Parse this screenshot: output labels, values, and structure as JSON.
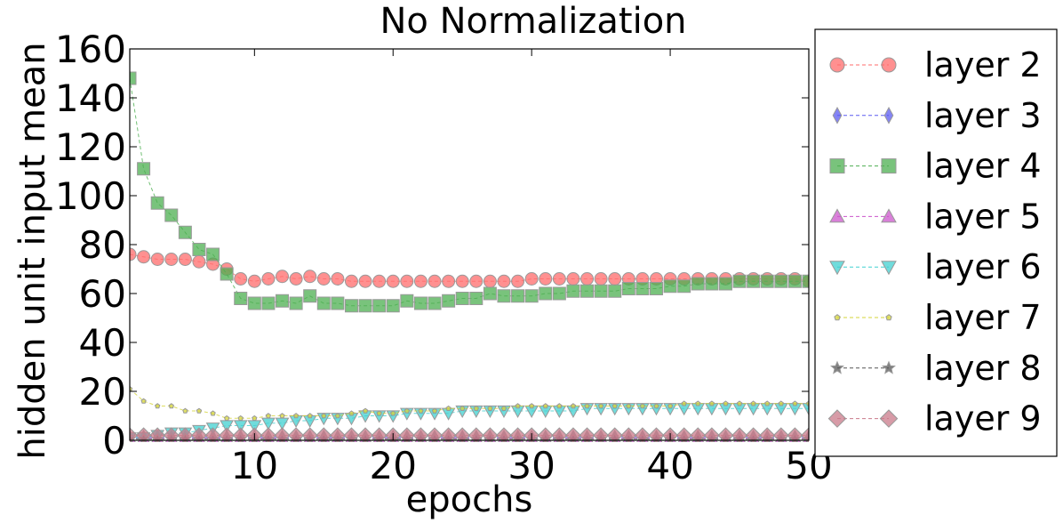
{
  "chart_data": {
    "type": "line",
    "title": "No Normalization",
    "xlabel": "epochs",
    "ylabel": "hidden unit input mean",
    "xlim": [
      1,
      50
    ],
    "ylim": [
      0,
      160
    ],
    "xticks": [
      10,
      20,
      30,
      40,
      50
    ],
    "yticks": [
      0,
      20,
      40,
      60,
      80,
      100,
      120,
      140,
      160
    ],
    "grid": false,
    "legend_position": "right-outside",
    "x": [
      1,
      2,
      3,
      4,
      5,
      6,
      7,
      8,
      9,
      10,
      11,
      12,
      13,
      14,
      15,
      16,
      17,
      18,
      19,
      20,
      21,
      22,
      23,
      24,
      25,
      26,
      27,
      28,
      29,
      30,
      31,
      32,
      33,
      34,
      35,
      36,
      37,
      38,
      39,
      40,
      41,
      42,
      43,
      44,
      45,
      46,
      47,
      48,
      49,
      50
    ],
    "series": [
      {
        "name": "layer 2",
        "color": "#ff6b6b",
        "marker": "circle",
        "values": [
          76,
          75,
          74,
          74,
          74,
          73,
          72,
          70,
          66,
          65,
          66,
          67,
          66,
          67,
          66,
          66,
          65,
          65,
          65,
          65,
          65,
          65,
          65,
          65,
          65,
          65,
          65,
          65,
          65,
          66,
          66,
          66,
          66,
          66,
          66,
          66,
          66,
          66,
          66,
          66,
          66,
          66,
          66,
          66,
          66,
          66,
          66,
          66,
          66,
          65
        ]
      },
      {
        "name": "layer 3",
        "color": "#5b5bf0",
        "marker": "diamond-thin",
        "values": [
          1.2,
          1.2,
          1.2,
          1.2,
          1.2,
          1.2,
          1.2,
          1.2,
          1.2,
          1.2,
          1.2,
          1.2,
          1.2,
          1.2,
          1.2,
          1.2,
          1.2,
          1.2,
          1.2,
          1.2,
          1.2,
          1.2,
          1.2,
          1.2,
          1.2,
          1.2,
          1.2,
          1.2,
          1.2,
          1.2,
          1.2,
          1.2,
          1.2,
          1.2,
          1.2,
          1.2,
          1.2,
          1.2,
          1.2,
          1.2,
          1.2,
          1.2,
          1.2,
          1.2,
          1.2,
          1.2,
          1.2,
          1.2,
          1.2,
          1.2
        ]
      },
      {
        "name": "layer 4",
        "color": "#4caf50",
        "marker": "square",
        "values": [
          148,
          111,
          97,
          92,
          85,
          78,
          76,
          68,
          58,
          56,
          56,
          57,
          56,
          59,
          56,
          56,
          55,
          55,
          55,
          55,
          57,
          56,
          56,
          57,
          58,
          58,
          60,
          59,
          59,
          59,
          60,
          60,
          61,
          61,
          61,
          61,
          62,
          62,
          62,
          63,
          63,
          64,
          64,
          64,
          65,
          65,
          65,
          65,
          65,
          65
        ]
      },
      {
        "name": "layer 5",
        "color": "#cc55cc",
        "marker": "triangle-up",
        "values": [
          0.8,
          0.8,
          0.8,
          0.8,
          0.8,
          0.8,
          0.8,
          0.8,
          0.8,
          0.8,
          0.8,
          0.8,
          0.8,
          0.8,
          0.8,
          0.8,
          0.8,
          0.8,
          0.8,
          0.8,
          0.8,
          0.8,
          0.8,
          0.8,
          0.8,
          0.8,
          0.8,
          0.8,
          0.8,
          0.8,
          0.8,
          0.8,
          0.8,
          0.8,
          0.8,
          0.8,
          0.8,
          0.8,
          0.8,
          0.8,
          0.8,
          0.8,
          0.8,
          0.8,
          0.8,
          0.8,
          0.8,
          0.8,
          0.8,
          0.8
        ]
      },
      {
        "name": "layer 6",
        "color": "#40d0d0",
        "marker": "triangle-down",
        "values": [
          1,
          1,
          2,
          3,
          3,
          4,
          5,
          6,
          6,
          6,
          7,
          7,
          8,
          8,
          9,
          9,
          9,
          10,
          10,
          10,
          11,
          11,
          11,
          11,
          12,
          12,
          12,
          12,
          12,
          12,
          12,
          12,
          12,
          13,
          13,
          13,
          13,
          13,
          13,
          13,
          13,
          13,
          13,
          13,
          13,
          13,
          13,
          13,
          13,
          13
        ]
      },
      {
        "name": "layer 7",
        "color": "#d4d43a",
        "marker": "pentagon-small",
        "values": [
          21,
          16,
          14,
          14,
          12,
          12,
          11,
          9,
          9,
          9,
          10,
          10,
          10,
          10,
          10,
          10,
          11,
          12,
          11,
          11,
          12,
          12,
          12,
          13,
          13,
          13,
          13,
          13,
          14,
          14,
          14,
          14,
          14,
          14,
          14,
          14,
          14,
          14,
          14,
          14,
          15,
          15,
          15,
          15,
          15,
          15,
          15,
          15,
          15,
          15
        ]
      },
      {
        "name": "layer 8",
        "color": "#555555",
        "marker": "star",
        "values": [
          0.5,
          0.5,
          0.5,
          0.5,
          0.5,
          0.5,
          0.5,
          0.5,
          0.5,
          0.5,
          0.5,
          0.5,
          0.5,
          0.5,
          0.5,
          0.5,
          0.5,
          0.5,
          0.5,
          0.5,
          0.5,
          0.5,
          0.5,
          0.5,
          0.5,
          0.5,
          0.5,
          0.5,
          0.5,
          0.5,
          0.5,
          0.5,
          0.5,
          0.5,
          0.5,
          0.5,
          0.5,
          0.5,
          0.5,
          0.5,
          0.5,
          0.5,
          0.5,
          0.5,
          0.5,
          0.5,
          0.5,
          0.5,
          0.5,
          0.5
        ]
      },
      {
        "name": "layer 9",
        "color": "#c97a8a",
        "marker": "diamond",
        "values": [
          2,
          2,
          2,
          2,
          2,
          2,
          2,
          2,
          2,
          2,
          2,
          2,
          2,
          2,
          2,
          2,
          2,
          2,
          2,
          2,
          2,
          2,
          2,
          2,
          2,
          2,
          2,
          2,
          2,
          2,
          2,
          2,
          2,
          2,
          2,
          2,
          2,
          2,
          2,
          2,
          2,
          2,
          2,
          2,
          2,
          2,
          2,
          2,
          2,
          2
        ]
      }
    ]
  }
}
